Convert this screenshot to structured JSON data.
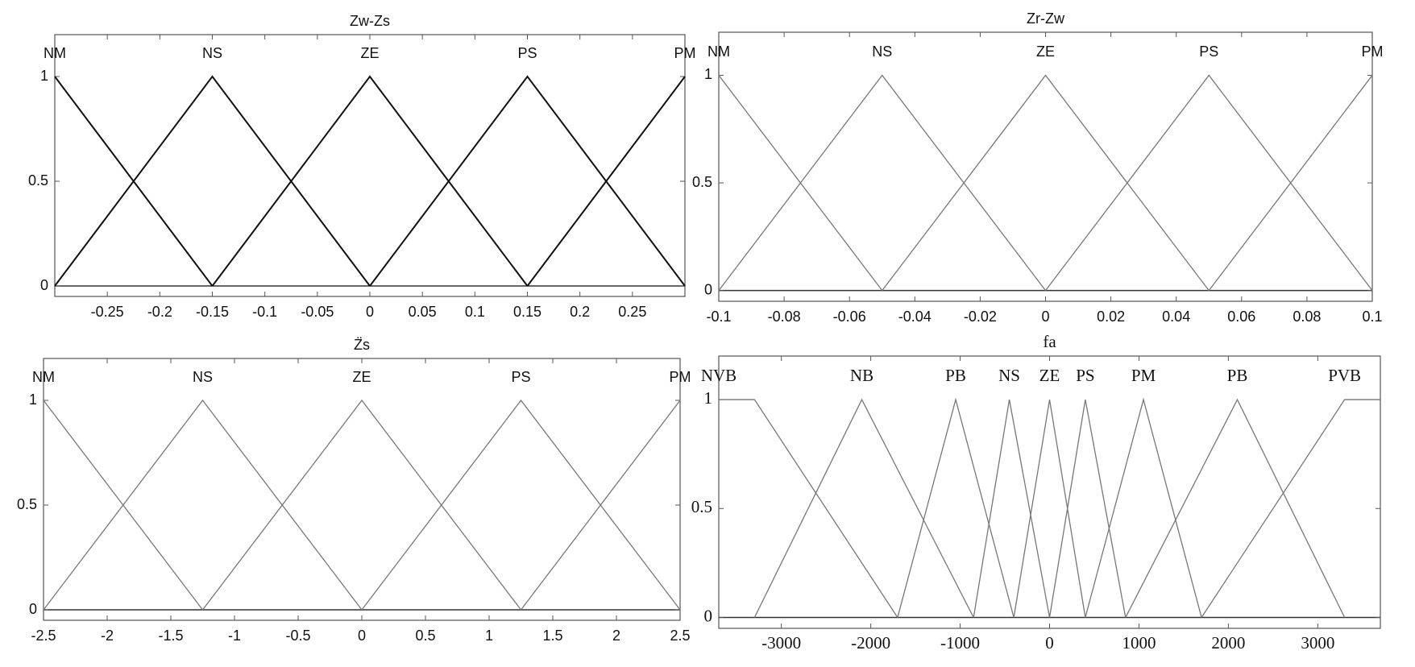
{
  "chart_data": [
    {
      "type": "line",
      "title": "Zw-Zs",
      "color": "#111",
      "xlim": [
        -0.3,
        0.3
      ],
      "ylim": [
        -0.05,
        1.2
      ],
      "xticks": [
        -0.25,
        -0.2,
        -0.15,
        -0.1,
        -0.05,
        0,
        0.05,
        0.1,
        0.15,
        0.2,
        0.25
      ],
      "yticks": [
        0,
        0.5,
        1
      ],
      "grid": false,
      "series": [
        {
          "name": "NM",
          "x": [
            -0.3,
            -0.15
          ],
          "values": [
            1,
            0
          ]
        },
        {
          "name": "NS",
          "x": [
            -0.3,
            -0.15,
            0
          ],
          "values": [
            0,
            1,
            0
          ]
        },
        {
          "name": "ZE",
          "x": [
            -0.15,
            0,
            0.15
          ],
          "values": [
            0,
            1,
            0
          ]
        },
        {
          "name": "PS",
          "x": [
            0,
            0.15,
            0.3
          ],
          "values": [
            0,
            1,
            0
          ]
        },
        {
          "name": "PM",
          "x": [
            0.15,
            0.3
          ],
          "values": [
            0,
            1
          ]
        }
      ]
    },
    {
      "type": "line",
      "title": "Zr-Zw",
      "color": "#777",
      "xlim": [
        -0.1,
        0.1
      ],
      "ylim": [
        -0.05,
        1.2
      ],
      "xticks": [
        -0.1,
        -0.08,
        -0.06,
        -0.04,
        -0.02,
        0,
        0.02,
        0.04,
        0.06,
        0.08,
        0.1
      ],
      "yticks": [
        0,
        0.5,
        1
      ],
      "grid": false,
      "series": [
        {
          "name": "NM",
          "x": [
            -0.1,
            -0.05
          ],
          "values": [
            1,
            0
          ]
        },
        {
          "name": "NS",
          "x": [
            -0.1,
            -0.05,
            0
          ],
          "values": [
            0,
            1,
            0
          ]
        },
        {
          "name": "ZE",
          "x": [
            -0.05,
            0,
            0.05
          ],
          "values": [
            0,
            1,
            0
          ]
        },
        {
          "name": "PS",
          "x": [
            0,
            0.05,
            0.1
          ],
          "values": [
            0,
            1,
            0
          ]
        },
        {
          "name": "PM",
          "x": [
            0.05,
            0.1
          ],
          "values": [
            0,
            1
          ]
        }
      ]
    },
    {
      "type": "line",
      "title": "Z̈s",
      "color": "#777",
      "xlim": [
        -2.5,
        2.5
      ],
      "ylim": [
        -0.05,
        1.2
      ],
      "xticks": [
        -2.5,
        -2,
        -1.5,
        -1,
        -0.5,
        0,
        0.5,
        1,
        1.5,
        2,
        2.5
      ],
      "yticks": [
        0,
        0.5,
        1
      ],
      "grid": false,
      "series": [
        {
          "name": "NM",
          "x": [
            -2.5,
            -1.25
          ],
          "values": [
            1,
            0
          ]
        },
        {
          "name": "NS",
          "x": [
            -2.5,
            -1.25,
            0
          ],
          "values": [
            0,
            1,
            0
          ]
        },
        {
          "name": "ZE",
          "x": [
            -1.25,
            0,
            1.25
          ],
          "values": [
            0,
            1,
            0
          ]
        },
        {
          "name": "PS",
          "x": [
            0,
            1.25,
            2.5
          ],
          "values": [
            0,
            1,
            0
          ]
        },
        {
          "name": "PM",
          "x": [
            1.25,
            2.5
          ],
          "values": [
            0,
            1
          ]
        }
      ]
    },
    {
      "type": "line",
      "title": "fa",
      "color": "#777",
      "xlim": [
        -3700,
        3700
      ],
      "ylim": [
        -0.05,
        1.2
      ],
      "xticks": [
        -3000,
        -2000,
        -1000,
        0,
        1000,
        2000,
        3000
      ],
      "yticks": [
        0,
        0.5,
        1
      ],
      "grid": false,
      "series": [
        {
          "name": "NVB",
          "x": [
            -3700,
            -3300,
            -1700
          ],
          "values": [
            1,
            1,
            0
          ]
        },
        {
          "name": "NB",
          "x": [
            -3300,
            -2100,
            -850
          ],
          "values": [
            0,
            1,
            0
          ]
        },
        {
          "name": "PB",
          "x": [
            -1700,
            -1050,
            -400
          ],
          "values": [
            0,
            1,
            0
          ]
        },
        {
          "name": "NS",
          "x": [
            -850,
            -450,
            0
          ],
          "values": [
            0,
            1,
            0
          ]
        },
        {
          "name": "ZE",
          "x": [
            -400,
            0,
            400
          ],
          "values": [
            0,
            1,
            0
          ]
        },
        {
          "name": "PS",
          "x": [
            0,
            400,
            850
          ],
          "values": [
            0,
            1,
            0
          ]
        },
        {
          "name": "PM",
          "x": [
            400,
            1050,
            1700
          ],
          "values": [
            0,
            1,
            0
          ]
        },
        {
          "name": "PB",
          "x": [
            850,
            2100,
            3300
          ],
          "values": [
            0,
            1,
            0
          ]
        },
        {
          "name": "PVB",
          "x": [
            1700,
            3300,
            3700
          ],
          "values": [
            0,
            1,
            1
          ]
        }
      ]
    }
  ]
}
